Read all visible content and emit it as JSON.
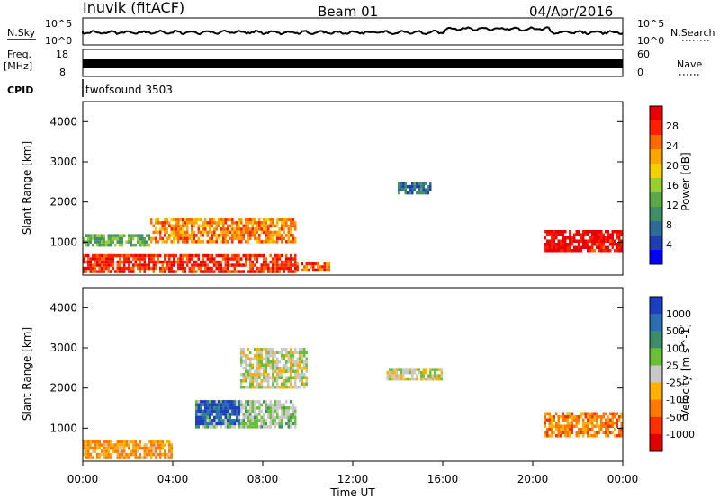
{
  "header": {
    "station": "Inuvik (fitACF)",
    "beam": "Beam 01",
    "date": "04/Apr/2016"
  },
  "top_panels": {
    "nsky": {
      "label": "N.Sky",
      "ticks": [
        "10^5",
        "10^0"
      ],
      "right_label": "N.Search",
      "right_ticks": [
        "10^5",
        "10^0"
      ]
    },
    "freq": {
      "label_line1": "Freq.",
      "label_line2": "[MHz]",
      "ticks": [
        "18",
        "8"
      ],
      "right_label": "Nave",
      "right_ticks": [
        "60",
        "0"
      ]
    },
    "cpid": {
      "label": "CPID",
      "value": "twofsound 3503"
    }
  },
  "power_panel": {
    "ylabel": "Slant Range [km]",
    "yticks": [
      "1000",
      "2000",
      "3000",
      "4000"
    ],
    "colorbar_label": "Power [dB]",
    "colorbar_ticks": [
      "4",
      "8",
      "12",
      "16",
      "20",
      "24",
      "28"
    ],
    "colors": [
      "#0000ff",
      "#1f3fae",
      "#2e6b99",
      "#3f8f6a",
      "#5aa84a",
      "#9acd32",
      "#f0d000",
      "#ffa500",
      "#ff6a00",
      "#ff2000",
      "#e80000"
    ]
  },
  "velocity_panel": {
    "ylabel": "Slant Range [km]",
    "yticks": [
      "1000",
      "2000",
      "3000",
      "4000"
    ],
    "colorbar_label": "Velocity [m s^-1]",
    "colorbar_ticks": [
      "1000",
      "500",
      "100",
      "25",
      "-25",
      "-100",
      "-500",
      "-1000"
    ],
    "colors": [
      "#1b3fbf",
      "#2b6fb0",
      "#3e8c6a",
      "#6abf3a",
      "#c8c8c8",
      "#ffb000",
      "#ff7a00",
      "#ff3000",
      "#e00000"
    ]
  },
  "xaxis": {
    "label": "Time UT",
    "ticks": [
      "00:00",
      "04:00",
      "08:00",
      "12:00",
      "16:00",
      "20:00",
      "00:00"
    ]
  },
  "chart_data": [
    {
      "type": "heatmap",
      "title": "Power",
      "xlabel": "Time UT",
      "ylabel": "Slant Range [km]",
      "xlim": [
        0,
        24
      ],
      "ylim": [
        180,
        4500
      ],
      "colorbar": {
        "label": "Power [dB]",
        "range": [
          0,
          30
        ]
      },
      "regions": [
        {
          "t": [
            0,
            9.5
          ],
          "r": [
            300,
            700
          ],
          "value": 26
        },
        {
          "t": [
            0,
            3
          ],
          "r": [
            900,
            1200
          ],
          "value": 12
        },
        {
          "t": [
            3,
            9.5
          ],
          "r": [
            1000,
            1600
          ],
          "value": 22
        },
        {
          "t": [
            9.5,
            11
          ],
          "r": [
            300,
            500
          ],
          "value": 24
        },
        {
          "t": [
            14,
            15.5
          ],
          "r": [
            2200,
            2500
          ],
          "value": 8
        },
        {
          "t": [
            20.5,
            24
          ],
          "r": [
            800,
            1300
          ],
          "value": 28
        }
      ]
    },
    {
      "type": "heatmap",
      "title": "Velocity",
      "xlabel": "Time UT",
      "ylabel": "Slant Range [km]",
      "xlim": [
        0,
        24
      ],
      "ylim": [
        180,
        4500
      ],
      "colorbar": {
        "label": "Velocity [m s^-1]",
        "range": [
          -1000,
          1000
        ]
      },
      "regions": [
        {
          "t": [
            0,
            4
          ],
          "r": [
            250,
            700
          ],
          "value": -300
        },
        {
          "t": [
            5,
            9.5
          ],
          "r": [
            1000,
            1700
          ],
          "value": 150
        },
        {
          "t": [
            5,
            7
          ],
          "r": [
            1100,
            1700
          ],
          "value": 800
        },
        {
          "t": [
            7,
            10
          ],
          "r": [
            2000,
            3000
          ],
          "value": 0
        },
        {
          "t": [
            13.5,
            16
          ],
          "r": [
            2200,
            2500
          ],
          "value": 0
        },
        {
          "t": [
            20.5,
            24
          ],
          "r": [
            800,
            1400
          ],
          "value": -400
        }
      ]
    }
  ]
}
